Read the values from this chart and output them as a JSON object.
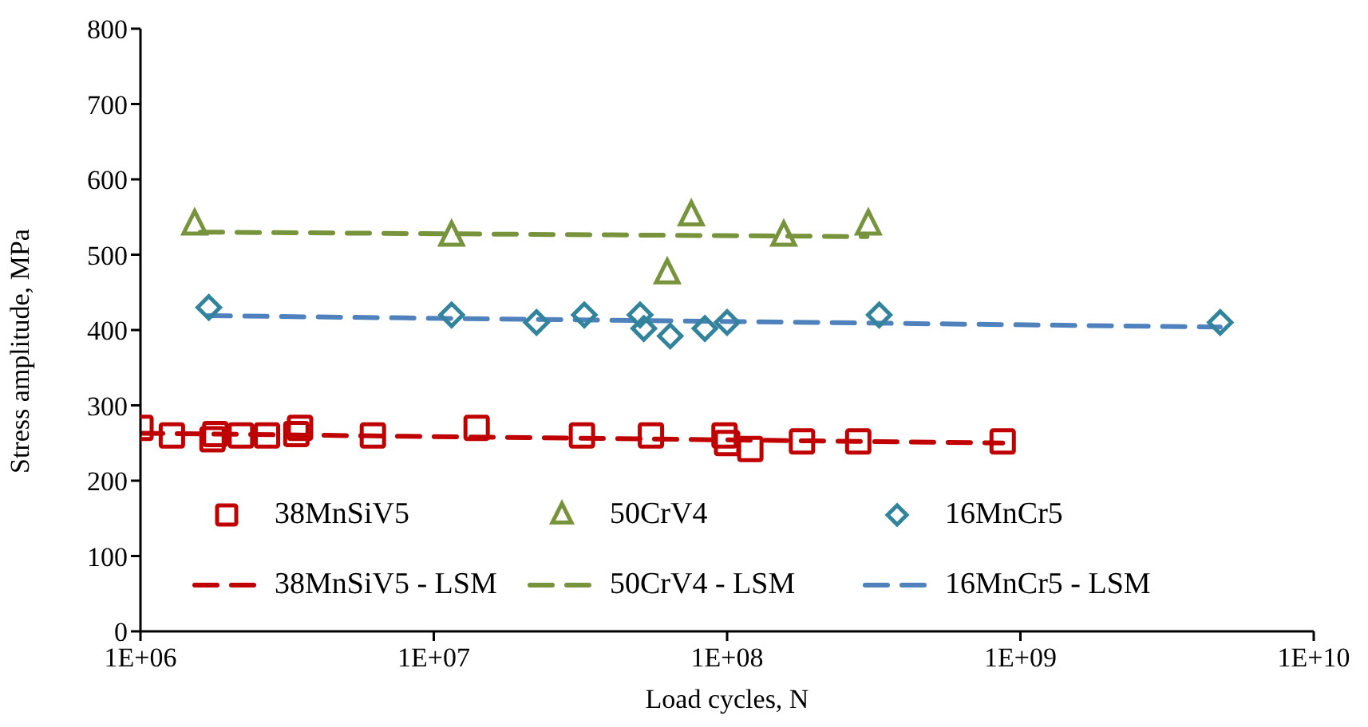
{
  "chart_data": {
    "type": "scatter",
    "xlabel": "Load cycles, N",
    "ylabel": "Stress amplitude, MPa",
    "log": "x",
    "xlim": [
      1000000,
      10000000000
    ],
    "xticks": [
      {
        "value": 1000000,
        "label": "1E+06"
      },
      {
        "value": 10000000,
        "label": "1E+07"
      },
      {
        "value": 100000000,
        "label": "1E+08"
      },
      {
        "value": 1000000000,
        "label": "1E+09"
      },
      {
        "value": 10000000000,
        "label": "1E+10"
      }
    ],
    "ylim": [
      0,
      800
    ],
    "yticks": [
      0,
      100,
      200,
      300,
      400,
      500,
      600,
      700,
      800
    ],
    "grid": false,
    "legend": "bottom",
    "series": [
      {
        "name": "38MnSiV5",
        "marker": "square",
        "color": "#c00000",
        "x": [
          1000000,
          1280000,
          1760000,
          1800000,
          2200000,
          2700000,
          3400000,
          3500000,
          6200000,
          14000000,
          32000000,
          55000000,
          98000000,
          100000000,
          120000000,
          180000000,
          280000000,
          870000000
        ],
        "values": [
          270,
          260,
          255,
          262,
          260,
          260,
          262,
          270,
          260,
          270,
          260,
          260,
          260,
          250,
          242,
          252,
          252,
          252
        ]
      },
      {
        "name": "50CrV4",
        "marker": "triangle",
        "color": "#77933c",
        "x": [
          1530000,
          11500000,
          62500000,
          75500000,
          156000000,
          303000000
        ],
        "values": [
          540,
          525,
          475,
          552,
          525,
          540
        ]
      },
      {
        "name": "16MnCr5",
        "marker": "diamond",
        "color": "#31849b",
        "x": [
          1710000,
          11500000,
          22400000,
          32600000,
          50500000,
          52000000,
          64000000,
          84000000,
          100000000,
          330000000,
          4800000000
        ],
        "values": [
          430,
          420,
          410,
          420,
          420,
          402,
          392,
          402,
          410,
          420,
          410
        ]
      },
      {
        "name": "38MnSiV5 - LSM",
        "type": "line",
        "line_style": "dashed",
        "color": "#c00000",
        "x": [
          1000000,
          870000000
        ],
        "values": [
          263,
          250
        ]
      },
      {
        "name": "50CrV4 - LSM",
        "type": "line",
        "line_style": "dashed",
        "color": "#77933c",
        "x": [
          1600000,
          300000000
        ],
        "values": [
          530,
          524
        ]
      },
      {
        "name": "16MnCr5 - LSM",
        "type": "line",
        "line_style": "dashed",
        "color": "#4f81bd",
        "x": [
          1700000,
          4800000000
        ],
        "values": [
          419,
          404
        ]
      }
    ]
  }
}
